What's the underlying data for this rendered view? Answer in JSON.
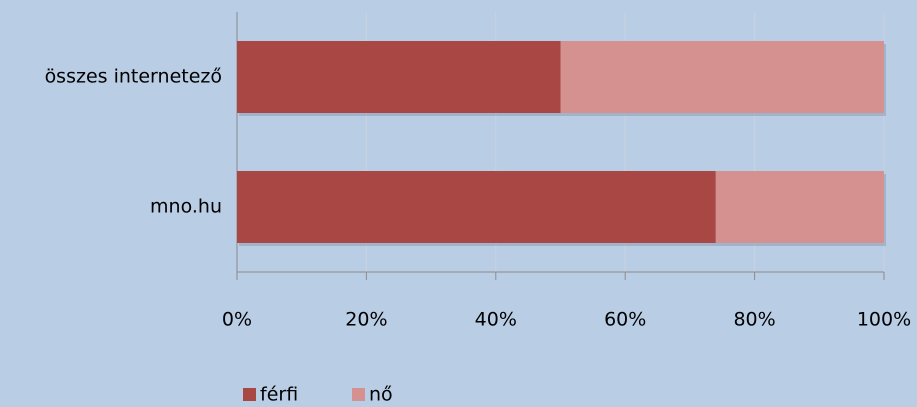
{
  "chart_data": {
    "type": "stacked_barh",
    "categories": [
      "összes internetező",
      "mno.hu"
    ],
    "series": [
      {
        "name": "férfi",
        "color": "#a94744",
        "values": [
          50,
          74
        ]
      },
      {
        "name": "nő",
        "color": "#d49190",
        "values": [
          50,
          26
        ]
      }
    ],
    "xlim": [
      0,
      100
    ],
    "xticks": [
      {
        "value": 0,
        "label": "0%"
      },
      {
        "value": 20,
        "label": "20%"
      },
      {
        "value": 40,
        "label": "40%"
      },
      {
        "value": 60,
        "label": "60%"
      },
      {
        "value": 80,
        "label": "80%"
      },
      {
        "value": 100,
        "label": "100%"
      }
    ],
    "grid": true,
    "legend": "bottom"
  }
}
